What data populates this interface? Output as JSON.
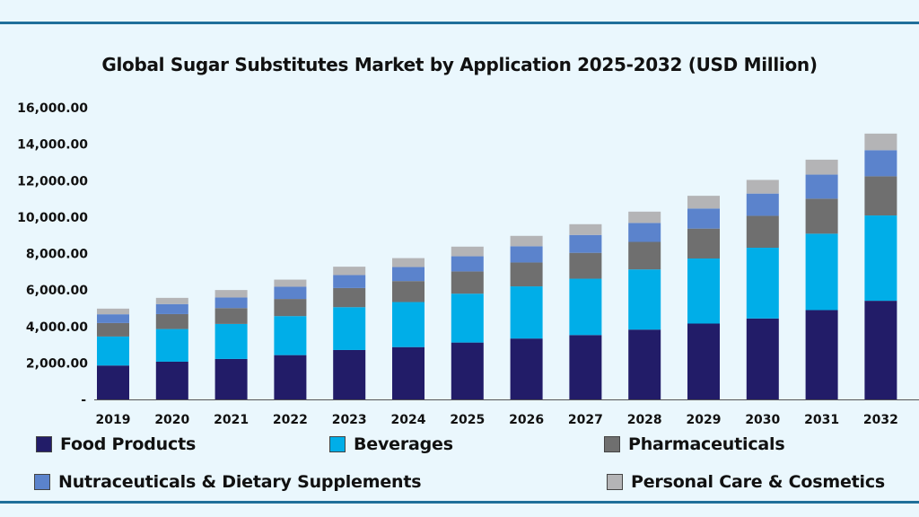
{
  "chart_data": {
    "type": "bar",
    "stacked": true,
    "title": "Global Sugar Substitutes Market by Application 2025-2032 (USD Million)",
    "xlabel": "",
    "ylabel": "",
    "categories": [
      "2019",
      "2020",
      "2021",
      "2022",
      "2023",
      "2024",
      "2025",
      "2026",
      "2027",
      "2028",
      "2029",
      "2030",
      "2031",
      "2032"
    ],
    "ylim": [
      0,
      16000
    ],
    "yticks": [
      0,
      2000,
      4000,
      6000,
      8000,
      10000,
      12000,
      14000,
      16000
    ],
    "ytick_labels": [
      "-",
      "2,000.00",
      "4,000.00",
      "6,000.00",
      "8,000.00",
      "10,000.00",
      "12,000.00",
      "14,000.00",
      "16,000.00"
    ],
    "grid": false,
    "legend_position": "bottom",
    "series": [
      {
        "name": "Food Products",
        "color": "#221c68",
        "values": [
          1860,
          2070,
          2220,
          2430,
          2710,
          2870,
          3120,
          3340,
          3530,
          3830,
          4160,
          4440,
          4900,
          5410
        ]
      },
      {
        "name": "Beverages",
        "color": "#00aee8",
        "values": [
          1590,
          1790,
          1920,
          2140,
          2350,
          2470,
          2680,
          2860,
          3090,
          3300,
          3570,
          3880,
          4190,
          4680
        ]
      },
      {
        "name": "Pharmaceuticals",
        "color": "#6f6f6f",
        "values": [
          740,
          820,
          870,
          940,
          1050,
          1150,
          1220,
          1310,
          1420,
          1510,
          1640,
          1750,
          1920,
          2150
        ]
      },
      {
        "name": "Nutraceuticals & Dietary Supplements",
        "color": "#5b83cc",
        "values": [
          480,
          550,
          580,
          670,
          710,
          770,
          830,
          890,
          980,
          1040,
          1100,
          1220,
          1320,
          1430
        ]
      },
      {
        "name": "Personal Care & Cosmetics",
        "color": "#b4b4b6",
        "values": [
          310,
          340,
          410,
          390,
          460,
          490,
          530,
          570,
          590,
          620,
          700,
          750,
          820,
          910
        ]
      }
    ]
  }
}
